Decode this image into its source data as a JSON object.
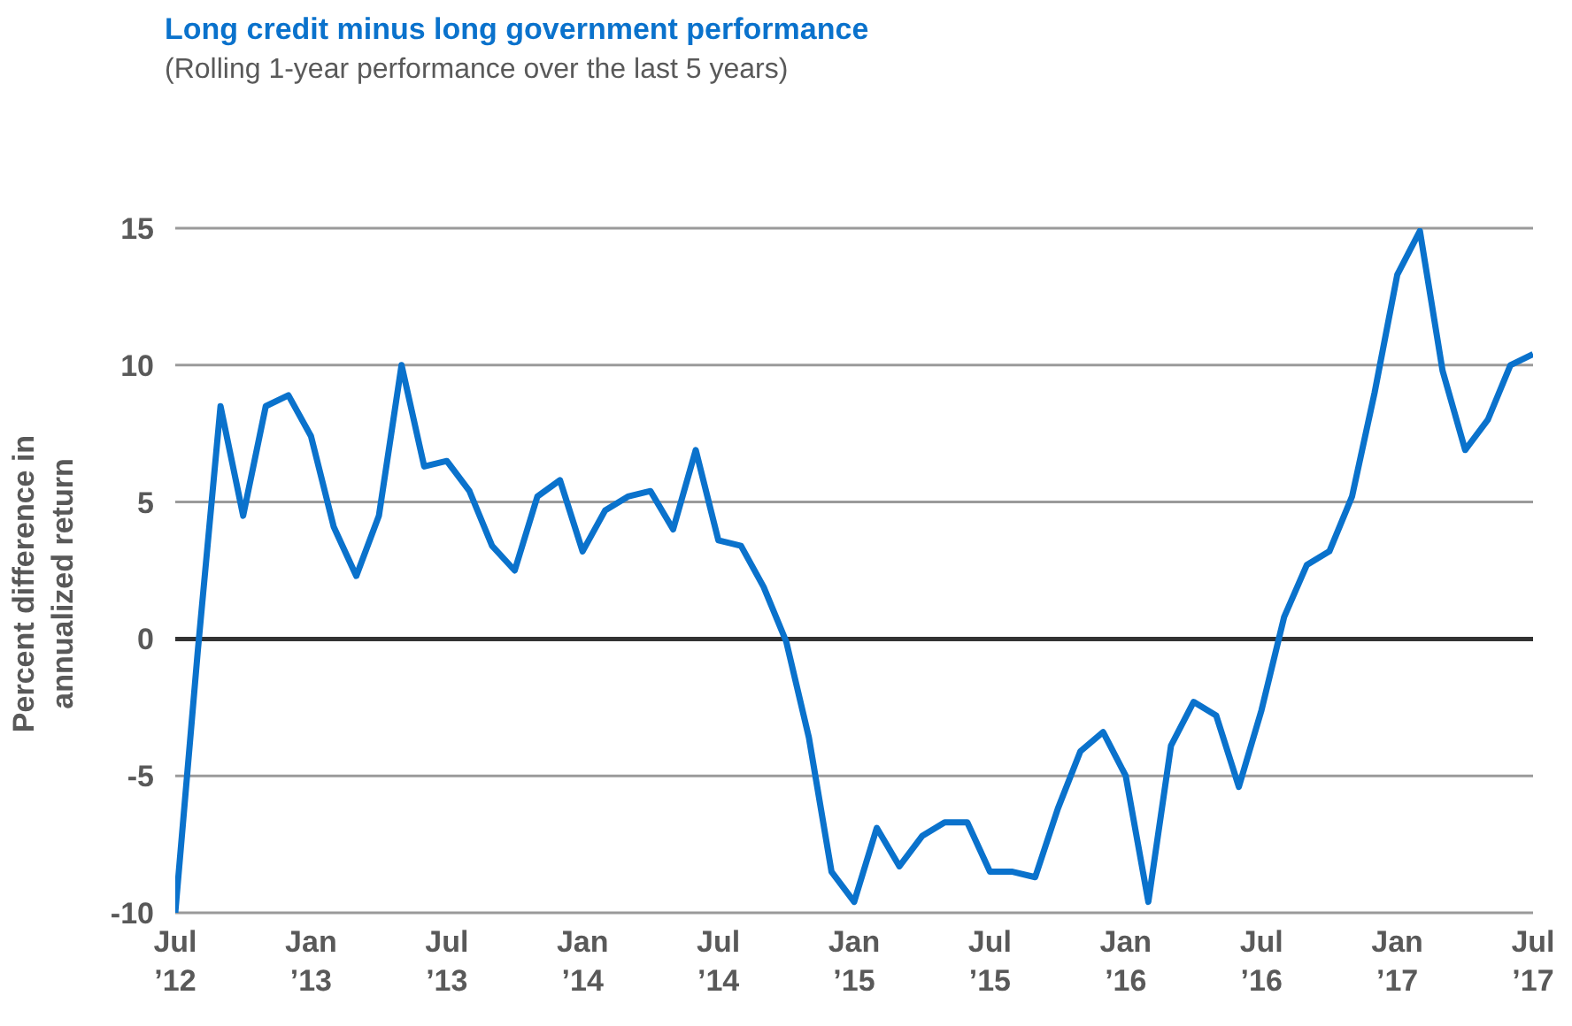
{
  "chart_data": {
    "type": "line",
    "title": "Long credit minus long government performance",
    "subtitle": "(Rolling 1-year performance over the last 5 years)",
    "ylabel": "Percent difference in annualized return",
    "x": [
      "2012-07",
      "2012-08",
      "2012-09",
      "2012-10",
      "2012-11",
      "2012-12",
      "2013-01",
      "2013-02",
      "2013-03",
      "2013-04",
      "2013-05",
      "2013-06",
      "2013-07",
      "2013-08",
      "2013-09",
      "2013-10",
      "2013-11",
      "2013-12",
      "2014-01",
      "2014-02",
      "2014-03",
      "2014-04",
      "2014-05",
      "2014-06",
      "2014-07",
      "2014-08",
      "2014-09",
      "2014-10",
      "2014-11",
      "2014-12",
      "2015-01",
      "2015-02",
      "2015-03",
      "2015-04",
      "2015-05",
      "2015-06",
      "2015-07",
      "2015-08",
      "2015-09",
      "2015-10",
      "2015-11",
      "2015-12",
      "2016-01",
      "2016-02",
      "2016-03",
      "2016-04",
      "2016-05",
      "2016-06",
      "2016-07",
      "2016-08",
      "2016-09",
      "2016-10",
      "2016-11",
      "2016-12",
      "2017-01",
      "2017-02",
      "2017-03",
      "2017-04",
      "2017-05",
      "2017-06",
      "2017-07"
    ],
    "series": [
      {
        "color": "#0a72cc",
        "values": [
          -10.0,
          -0.4,
          8.5,
          4.5,
          8.5,
          8.9,
          7.4,
          4.1,
          2.3,
          4.5,
          10.0,
          6.3,
          6.5,
          5.4,
          3.4,
          2.5,
          5.2,
          5.8,
          3.2,
          4.7,
          5.2,
          5.4,
          4.0,
          6.9,
          3.6,
          3.4,
          1.9,
          -0.1,
          -3.6,
          -8.5,
          -9.6,
          -6.9,
          -8.3,
          -7.2,
          -6.7,
          -6.7,
          -8.5,
          -8.5,
          -8.7,
          -6.2,
          -4.1,
          -3.4,
          -5.0,
          -9.6,
          -3.9,
          -2.3,
          -2.8,
          -5.4,
          -2.6,
          0.8,
          2.7,
          3.2,
          5.2,
          9.0,
          13.3,
          14.9,
          9.8,
          6.9,
          8.0,
          10.0,
          10.4
        ]
      }
    ],
    "xlim": [
      "2012-07",
      "2017-07"
    ],
    "xticks": [
      {
        "value": "2012-07",
        "label": "Jul ’12"
      },
      {
        "value": "2013-01",
        "label": "Jan ’13"
      },
      {
        "value": "2013-07",
        "label": "Jul ’13"
      },
      {
        "value": "2014-01",
        "label": "Jan ’14"
      },
      {
        "value": "2014-07",
        "label": "Jul ’14"
      },
      {
        "value": "2015-01",
        "label": "Jan ’15"
      },
      {
        "value": "2015-07",
        "label": "Jul ’15"
      },
      {
        "value": "2016-01",
        "label": "Jan ’16"
      },
      {
        "value": "2016-07",
        "label": "Jul ’16"
      },
      {
        "value": "2017-01",
        "label": "Jan ’17"
      },
      {
        "value": "2017-07",
        "label": "Jul ’17"
      }
    ],
    "ylim": [
      -10,
      15
    ],
    "yticks": [
      -10,
      -5,
      0,
      5,
      10,
      15
    ],
    "grid": "y",
    "ref_lines": [
      {
        "axis": "y",
        "value": 0,
        "color": "#333333"
      }
    ],
    "marker": "none",
    "line_style": "solid"
  }
}
